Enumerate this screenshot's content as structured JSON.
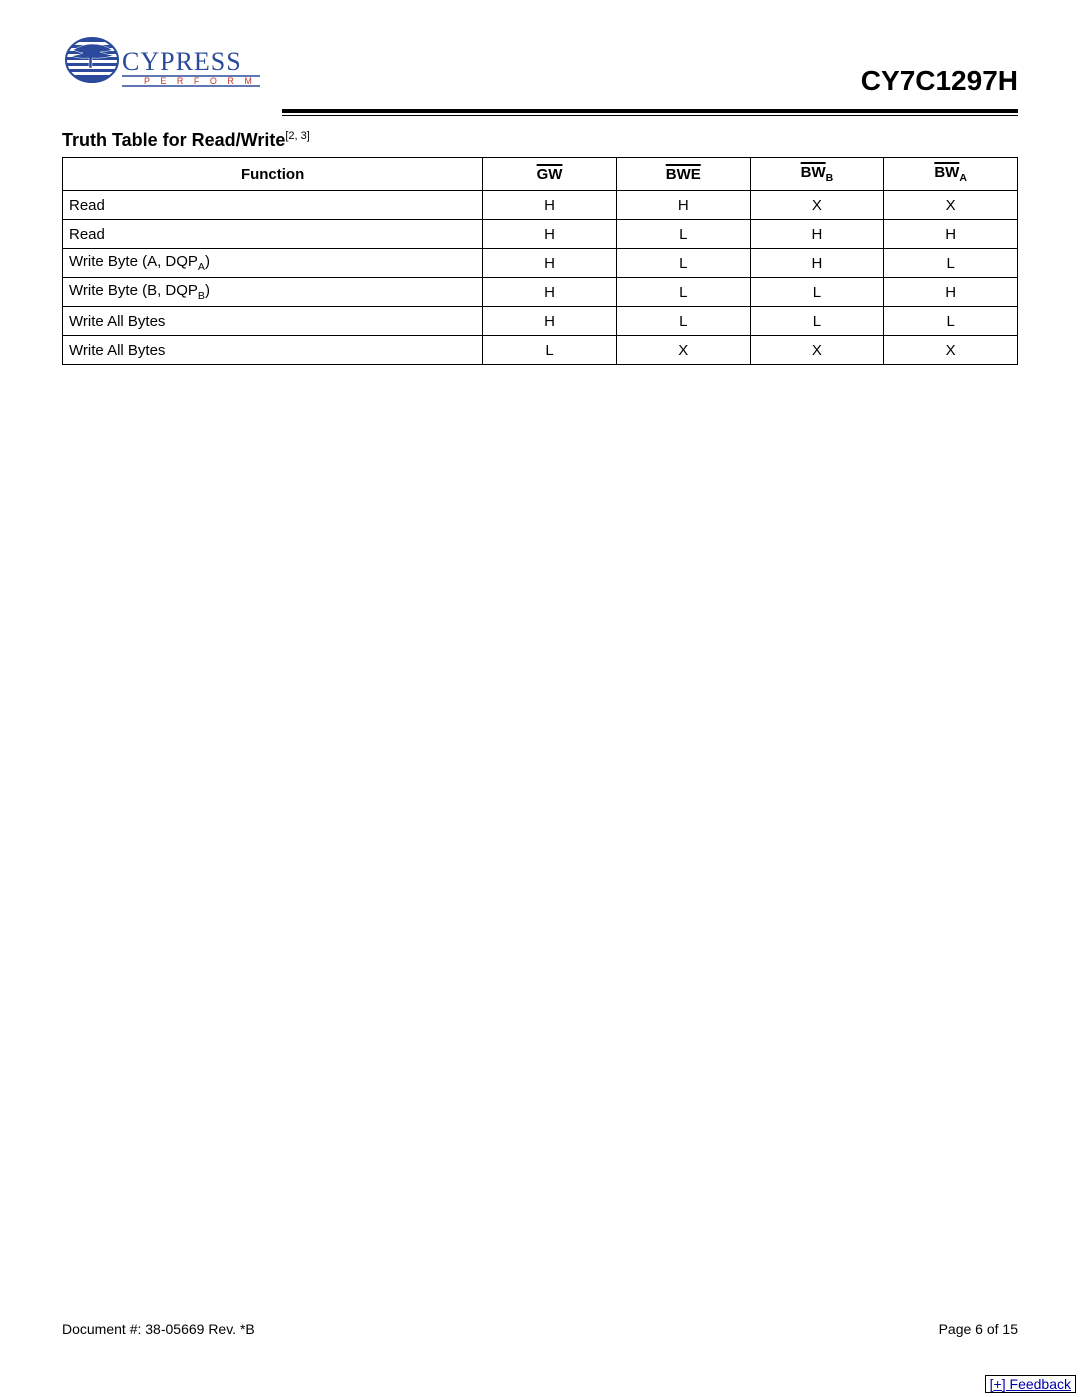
{
  "header": {
    "company": "CYPRESS",
    "tagline": "P E R F O R M",
    "part_number": "CY7C1297H"
  },
  "section": {
    "title": "Truth Table for Read/Write",
    "superscript": "[2, 3]"
  },
  "table": {
    "columns": [
      {
        "label": "Function",
        "overline": false,
        "subscript": ""
      },
      {
        "label": "GW",
        "overline": true,
        "subscript": ""
      },
      {
        "label": "BWE",
        "overline": true,
        "subscript": ""
      },
      {
        "label": "BW",
        "overline": true,
        "subscript": "B"
      },
      {
        "label": "BW",
        "overline": true,
        "subscript": "A"
      }
    ],
    "rows": [
      {
        "fn": "Read",
        "fn_sub": "",
        "gw": "H",
        "bwe": "H",
        "bwb": "X",
        "bwa": "X"
      },
      {
        "fn": "Read",
        "fn_sub": "",
        "gw": "H",
        "bwe": "L",
        "bwb": "H",
        "bwa": "H"
      },
      {
        "fn": "Write Byte (A, DQP",
        "fn_sub": "A",
        "fn_tail": ")",
        "gw": "H",
        "bwe": "L",
        "bwb": "H",
        "bwa": "L"
      },
      {
        "fn": "Write Byte (B, DQP",
        "fn_sub": "B",
        "fn_tail": ")",
        "gw": "H",
        "bwe": "L",
        "bwb": "L",
        "bwa": "H"
      },
      {
        "fn": "Write All Bytes",
        "fn_sub": "",
        "gw": "H",
        "bwe": "L",
        "bwb": "L",
        "bwa": "L"
      },
      {
        "fn": "Write All Bytes",
        "fn_sub": "",
        "gw": "L",
        "bwe": "X",
        "bwb": "X",
        "bwa": "X"
      }
    ]
  },
  "footer": {
    "doc": "Document #: 38-05669 Rev. *B",
    "page": "Page 6 of 15",
    "feedback": "[+] Feedback"
  },
  "colors": {
    "logo_blue": "#2b4a9b",
    "logo_red": "#c0392b"
  }
}
